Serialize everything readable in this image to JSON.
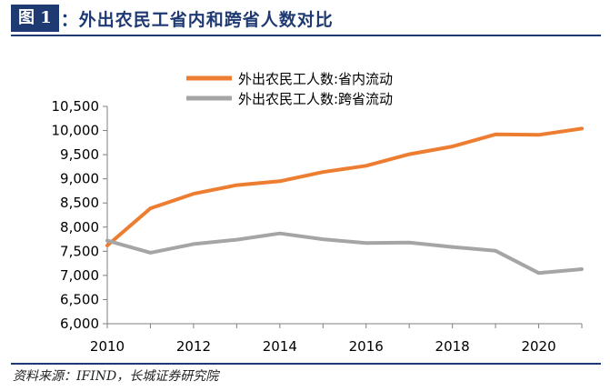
{
  "header": {
    "figure_label": "图 1",
    "title": "：外出农民工省内和跨省人数对比"
  },
  "source": "资料来源：IFIND，长城证券研究院",
  "chart_data": {
    "type": "line",
    "x": [
      2010,
      2011,
      2012,
      2013,
      2014,
      2015,
      2016,
      2017,
      2018,
      2019,
      2020,
      2021
    ],
    "series": [
      {
        "name": "外出农民工人数:省内流动",
        "color": "#ed7d31",
        "values": [
          7620,
          8390,
          8690,
          8870,
          8950,
          9140,
          9270,
          9510,
          9670,
          9920,
          9910,
          10040
        ]
      },
      {
        "name": "外出农民工人数:跨省流动",
        "color": "#a5a5a5",
        "values": [
          7720,
          7470,
          7650,
          7740,
          7870,
          7750,
          7670,
          7680,
          7590,
          7510,
          7050,
          7130
        ]
      }
    ],
    "ylim": [
      6000,
      10500
    ],
    "yticks": [
      "6,000",
      "6,500",
      "7,000",
      "7,500",
      "8,000",
      "8,500",
      "9,000",
      "9,500",
      "10,000",
      "10,500"
    ],
    "xticks": [
      "2010",
      "2012",
      "2014",
      "2016",
      "2018",
      "2020"
    ],
    "legend_position": "top-center",
    "grid": false
  }
}
